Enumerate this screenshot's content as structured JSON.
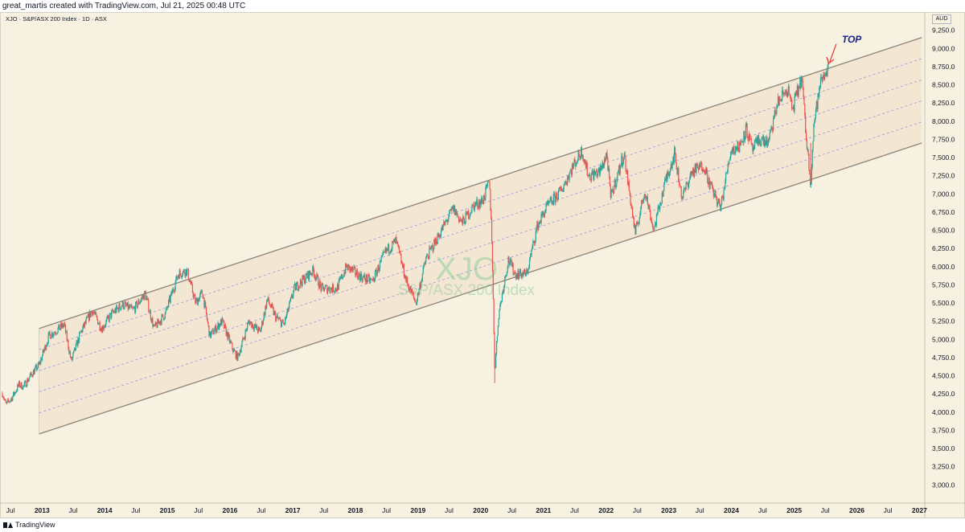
{
  "header": {
    "attribution": "great_martis created with TradingView.com, Jul 21, 2025 00:48 UTC",
    "symbol_line": "XJO · S&P/ASX 200 Index · 1D · ASX",
    "currency": "AUD"
  },
  "footer": {
    "brand": "TradingView"
  },
  "colors": {
    "background": "#f6f1e1",
    "up_candle": "#26a69a",
    "down_candle": "#ef5350",
    "channel_line": "#8c8478",
    "channel_fill": "#f2e2cc",
    "inner_dash": "#9c95e0",
    "annotation_text": "#1a237e",
    "annotation_arrow": "#e53935",
    "watermark": "#7ecb8e"
  },
  "watermark": {
    "symbol": "XJO",
    "name": "S&P/ASX 200 Index"
  },
  "annotation": {
    "text": "TOP",
    "arrow_icon": "arrow-down-left"
  },
  "chart_data": {
    "type": "line",
    "subtype": "candlestick-style price history with regression channel",
    "x_axis": {
      "range": [
        "2012-05-01",
        "2027-02-01"
      ],
      "labels": [
        {
          "text": "Jul",
          "date": "2012-07-01"
        },
        {
          "text": "2013",
          "date": "2013-01-01"
        },
        {
          "text": "Jul",
          "date": "2013-07-01"
        },
        {
          "text": "2014",
          "date": "2014-01-01"
        },
        {
          "text": "Jul",
          "date": "2014-07-01"
        },
        {
          "text": "2015",
          "date": "2015-01-01"
        },
        {
          "text": "Jul",
          "date": "2015-07-01"
        },
        {
          "text": "2016",
          "date": "2016-01-01"
        },
        {
          "text": "Jul",
          "date": "2016-07-01"
        },
        {
          "text": "2017",
          "date": "2017-01-01"
        },
        {
          "text": "Jul",
          "date": "2017-07-01"
        },
        {
          "text": "2018",
          "date": "2018-01-01"
        },
        {
          "text": "Jul",
          "date": "2018-07-01"
        },
        {
          "text": "2019",
          "date": "2019-01-01"
        },
        {
          "text": "Jul",
          "date": "2019-07-01"
        },
        {
          "text": "2020",
          "date": "2020-01-01"
        },
        {
          "text": "Jul",
          "date": "2020-07-01"
        },
        {
          "text": "2021",
          "date": "2021-01-01"
        },
        {
          "text": "Jul",
          "date": "2021-07-01"
        },
        {
          "text": "2022",
          "date": "2022-01-01"
        },
        {
          "text": "Jul",
          "date": "2022-07-01"
        },
        {
          "text": "2023",
          "date": "2023-01-01"
        },
        {
          "text": "Jul",
          "date": "2023-07-01"
        },
        {
          "text": "2024",
          "date": "2024-01-01"
        },
        {
          "text": "Jul",
          "date": "2024-07-01"
        },
        {
          "text": "2025",
          "date": "2025-01-01"
        },
        {
          "text": "Jul",
          "date": "2025-07-01"
        },
        {
          "text": "2026",
          "date": "2026-01-01"
        },
        {
          "text": "Jul",
          "date": "2026-07-01"
        },
        {
          "text": "2027",
          "date": "2027-01-01"
        }
      ]
    },
    "y_axis": {
      "range": [
        2750,
        9500
      ],
      "scale": "linear",
      "labels": [
        {
          "text": "3,000.0",
          "value": 3000
        },
        {
          "text": "3,250.0",
          "value": 3250
        },
        {
          "text": "3,500.0",
          "value": 3500
        },
        {
          "text": "3,750.0",
          "value": 3750
        },
        {
          "text": "4,000.0",
          "value": 4000
        },
        {
          "text": "4,250.0",
          "value": 4250
        },
        {
          "text": "4,500.0",
          "value": 4500
        },
        {
          "text": "4,750.0",
          "value": 4750
        },
        {
          "text": "5,000.0",
          "value": 5000
        },
        {
          "text": "5,250.0",
          "value": 5250
        },
        {
          "text": "5,500.0",
          "value": 5500
        },
        {
          "text": "5,750.0",
          "value": 5750
        },
        {
          "text": "6,000.0",
          "value": 6000
        },
        {
          "text": "6,250.0",
          "value": 6250
        },
        {
          "text": "6,500.0",
          "value": 6500
        },
        {
          "text": "6,750.0",
          "value": 6750
        },
        {
          "text": "7,000.0",
          "value": 7000
        },
        {
          "text": "7,250.0",
          "value": 7250
        },
        {
          "text": "7,500.0",
          "value": 7500
        },
        {
          "text": "7,750.0",
          "value": 7750
        },
        {
          "text": "8,000.0",
          "value": 8000
        },
        {
          "text": "8,250.0",
          "value": 8250
        },
        {
          "text": "8,500.0",
          "value": 8500
        },
        {
          "text": "8,750.0",
          "value": 8750
        },
        {
          "text": "9,000.0",
          "value": 9000
        },
        {
          "text": "9,250.0",
          "value": 9250
        }
      ]
    },
    "price_series": {
      "name": "XJO",
      "points": [
        [
          "2012-05-15",
          4260
        ],
        [
          "2012-06-05",
          4100
        ],
        [
          "2012-07-10",
          4200
        ],
        [
          "2012-08-20",
          4380
        ],
        [
          "2012-09-15",
          4350
        ],
        [
          "2012-10-25",
          4500
        ],
        [
          "2012-12-15",
          4650
        ],
        [
          "2013-02-10",
          5050
        ],
        [
          "2013-04-10",
          5150
        ],
        [
          "2013-05-10",
          5200
        ],
        [
          "2013-06-20",
          4700
        ],
        [
          "2013-08-15",
          5100
        ],
        [
          "2013-10-20",
          5400
        ],
        [
          "2013-12-15",
          5150
        ],
        [
          "2014-02-10",
          5350
        ],
        [
          "2014-04-15",
          5480
        ],
        [
          "2014-06-15",
          5400
        ],
        [
          "2014-08-25",
          5630
        ],
        [
          "2014-10-15",
          5150
        ],
        [
          "2014-12-20",
          5350
        ],
        [
          "2015-03-05",
          5900
        ],
        [
          "2015-04-25",
          5950
        ],
        [
          "2015-06-15",
          5500
        ],
        [
          "2015-07-25",
          5650
        ],
        [
          "2015-09-05",
          5050
        ],
        [
          "2015-11-15",
          5250
        ],
        [
          "2016-01-20",
          4850
        ],
        [
          "2016-02-15",
          4750
        ],
        [
          "2016-04-20",
          5250
        ],
        [
          "2016-06-25",
          5100
        ],
        [
          "2016-08-05",
          5550
        ],
        [
          "2016-09-25",
          5300
        ],
        [
          "2016-11-10",
          5200
        ],
        [
          "2017-01-10",
          5700
        ],
        [
          "2017-04-30",
          5950
        ],
        [
          "2017-06-15",
          5700
        ],
        [
          "2017-09-15",
          5700
        ],
        [
          "2017-11-10",
          6000
        ],
        [
          "2018-02-10",
          5850
        ],
        [
          "2018-04-10",
          5800
        ],
        [
          "2018-06-25",
          6200
        ],
        [
          "2018-08-25",
          6350
        ],
        [
          "2018-10-25",
          5800
        ],
        [
          "2018-12-20",
          5500
        ],
        [
          "2019-02-15",
          6100
        ],
        [
          "2019-04-25",
          6400
        ],
        [
          "2019-07-25",
          6800
        ],
        [
          "2019-09-15",
          6600
        ],
        [
          "2019-11-25",
          6850
        ],
        [
          "2020-01-10",
          6900
        ],
        [
          "2020-02-20",
          7150
        ],
        [
          "2020-03-05",
          6500
        ],
        [
          "2020-03-23",
          4550
        ],
        [
          "2020-04-15",
          5350
        ],
        [
          "2020-06-10",
          6100
        ],
        [
          "2020-07-20",
          5900
        ],
        [
          "2020-09-25",
          5900
        ],
        [
          "2020-11-25",
          6550
        ],
        [
          "2021-01-15",
          6800
        ],
        [
          "2021-04-15",
          7050
        ],
        [
          "2021-06-15",
          7350
        ],
        [
          "2021-08-13",
          7600
        ],
        [
          "2021-09-20",
          7250
        ],
        [
          "2021-11-25",
          7300
        ],
        [
          "2022-01-05",
          7550
        ],
        [
          "2022-01-27",
          6950
        ],
        [
          "2022-04-15",
          7550
        ],
        [
          "2022-06-20",
          6450
        ],
        [
          "2022-08-15",
          7050
        ],
        [
          "2022-10-05",
          6500
        ],
        [
          "2022-12-15",
          7200
        ],
        [
          "2023-02-03",
          7550
        ],
        [
          "2023-03-20",
          6950
        ],
        [
          "2023-05-15",
          7300
        ],
        [
          "2023-07-25",
          7400
        ],
        [
          "2023-08-25",
          7150
        ],
        [
          "2023-10-30",
          6800
        ],
        [
          "2023-12-28",
          7600
        ],
        [
          "2024-02-15",
          7650
        ],
        [
          "2024-03-28",
          7900
        ],
        [
          "2024-05-01",
          7600
        ],
        [
          "2024-06-15",
          7750
        ],
        [
          "2024-08-05",
          7700
        ],
        [
          "2024-09-25",
          8250
        ],
        [
          "2024-11-25",
          8450
        ],
        [
          "2024-12-20",
          8150
        ],
        [
          "2025-02-14",
          8600
        ],
        [
          "2025-03-11",
          7800
        ],
        [
          "2025-04-07",
          7150
        ],
        [
          "2025-04-25",
          7950
        ],
        [
          "2025-06-05",
          8550
        ],
        [
          "2025-07-18",
          8750
        ]
      ]
    },
    "channel": {
      "upper": {
        "start": [
          "2012-12-15",
          5150
        ],
        "end": [
          "2027-01-15",
          9150
        ]
      },
      "lower": {
        "start": [
          "2012-12-15",
          3700
        ],
        "end": [
          "2027-01-15",
          7700
        ]
      },
      "inner_dashed_levels": [
        0.2,
        0.4,
        0.6,
        0.8
      ]
    },
    "annotation_point": [
      "2025-07-18",
      8750
    ]
  }
}
